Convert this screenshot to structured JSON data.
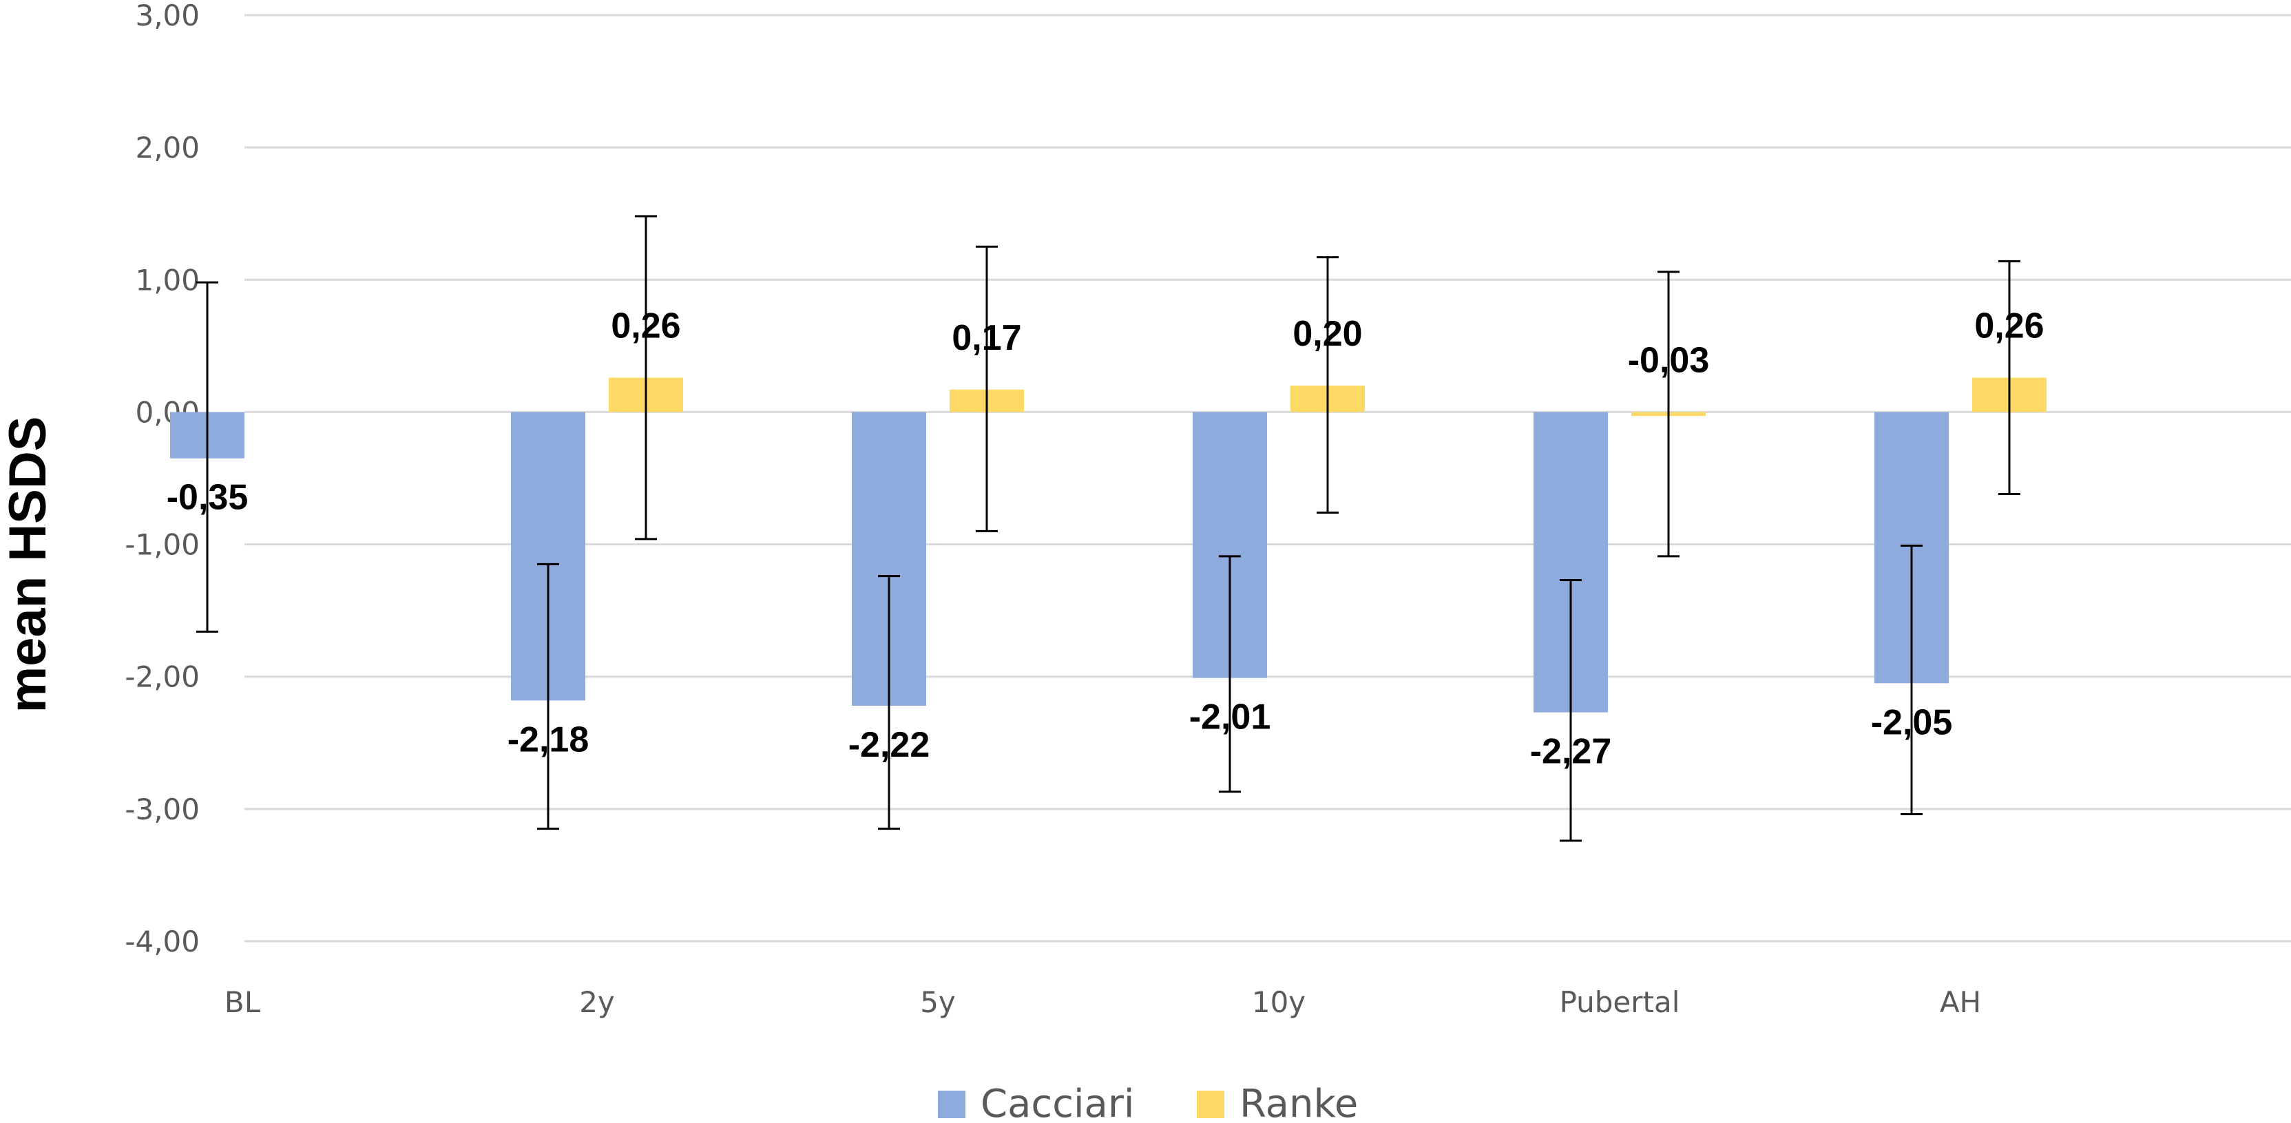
{
  "chart_data": {
    "type": "bar",
    "title": "",
    "xlabel": "",
    "ylabel": "mean HSDS",
    "ylim": [
      -4,
      3
    ],
    "yticks": [
      3,
      2,
      1,
      0,
      -1,
      -2,
      -3,
      -4
    ],
    "ytick_labels": [
      "3,00",
      "2,00",
      "1,00",
      "0,00",
      "-1,00",
      "-2,00",
      "-3,00",
      "-4,00"
    ],
    "grid": true,
    "legend_position": "bottom",
    "categories": [
      "BL",
      "2y",
      "5y",
      "10y",
      "Pubertal",
      "AH"
    ],
    "series": [
      {
        "name": "Cacciari",
        "color": "#8faadc",
        "values": [
          -0.35,
          -2.18,
          -2.22,
          -2.01,
          -2.27,
          -2.05
        ],
        "labels": [
          "-0,35",
          "-2,18",
          "-2,22",
          "-2,01",
          "-2,27",
          "-2,05"
        ],
        "error_low": [
          -1.66,
          -3.15,
          -3.15,
          -2.87,
          -3.24,
          -3.04
        ],
        "error_high": [
          0.98,
          -1.15,
          -1.24,
          -1.09,
          -1.27,
          -1.01
        ]
      },
      {
        "name": "Ranke",
        "color": "#ffd966",
        "values": [
          null,
          0.26,
          0.17,
          0.2,
          -0.03,
          0.26
        ],
        "labels": [
          "",
          "0,26",
          "0,17",
          "0,20",
          "-0,03",
          "0,26"
        ],
        "error_low": [
          null,
          -0.96,
          -0.9,
          -0.76,
          -1.09,
          -0.62
        ],
        "error_high": [
          null,
          1.48,
          1.25,
          1.17,
          1.06,
          1.14
        ]
      }
    ]
  }
}
